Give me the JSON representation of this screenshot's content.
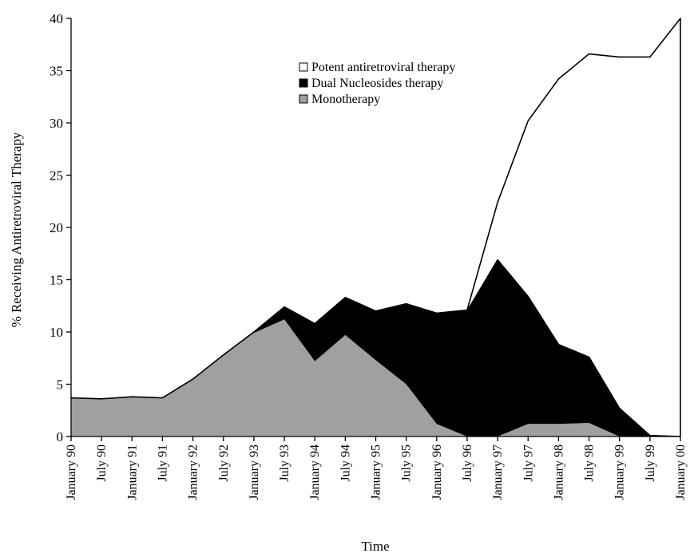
{
  "chart_data": {
    "type": "area",
    "stacked": true,
    "title": "",
    "xlabel": "Time",
    "ylabel": "% Receiving Antiretroviral Therapy",
    "ylim": [
      0,
      40
    ],
    "yticks": [
      0,
      5,
      10,
      15,
      20,
      25,
      30,
      35,
      40
    ],
    "grid": false,
    "legend_position": "upper-center",
    "categories": [
      "January 90",
      "July 90",
      "January 91",
      "July 91",
      "January 92",
      "July 92",
      "January 93",
      "July 93",
      "January 94",
      "July 94",
      "January 95",
      "July 95",
      "January 96",
      "July 96",
      "January 97",
      "July 97",
      "January 98",
      "July 98",
      "January 99",
      "July 99",
      "January 00"
    ],
    "series": [
      {
        "name": "Monotherapy",
        "color": "#a0a0a0",
        "values": [
          3.7,
          3.6,
          3.8,
          3.7,
          5.5,
          7.8,
          9.9,
          11.2,
          7.2,
          9.7,
          7.3,
          5.0,
          1.2,
          0.0,
          0.0,
          1.2,
          1.2,
          1.3,
          0.0,
          0.0,
          0.0
        ]
      },
      {
        "name": "Dual Nucleosides therapy",
        "color": "#000000",
        "values": [
          0.0,
          0.0,
          0.0,
          0.0,
          0.0,
          0.0,
          0.1,
          1.2,
          3.6,
          3.6,
          4.7,
          7.7,
          10.6,
          12.0,
          16.9,
          12.2,
          7.6,
          6.3,
          2.7,
          0.1,
          0.0
        ]
      },
      {
        "name": "Potent antiretroviral therapy",
        "color": "#ffffff",
        "values": [
          0.0,
          0.0,
          0.0,
          0.0,
          0.0,
          0.0,
          0.0,
          0.0,
          0.0,
          0.0,
          0.0,
          0.0,
          0.0,
          0.1,
          5.5,
          16.8,
          25.4,
          29.0,
          33.6,
          36.2,
          40.0
        ]
      }
    ],
    "legend_order": [
      "Potent antiretroviral therapy",
      "Dual Nucleosides therapy",
      "Monotherapy"
    ]
  }
}
